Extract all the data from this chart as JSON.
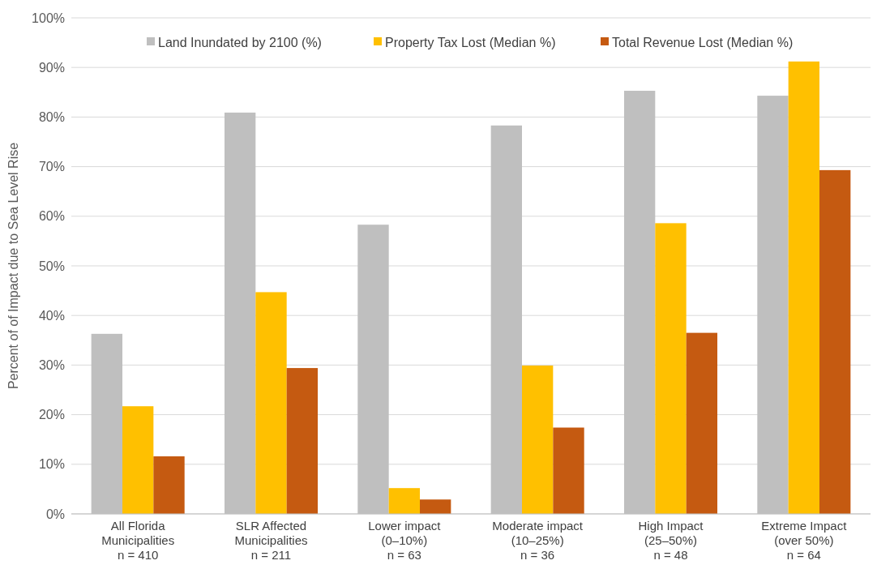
{
  "chart_data": {
    "type": "bar",
    "ylabel": "Percent of of Impact due to Sea Level Rise",
    "categories": [
      "All Florida\nMunicipalities\nn = 410",
      "SLR Affected\nMunicipalities\nn = 211",
      "Lower impact\n(0–10%)\nn = 63",
      "Moderate impact\n(10–25%)\nn = 36",
      "High Impact\n(25–50%)\nn = 48",
      "Extreme Impact\n(over 50%)\nn = 64"
    ],
    "series": [
      {
        "name": "Land Inundated by 2100 (%)",
        "color": "#bfbfbf",
        "values": [
          36.3,
          80.9,
          58.3,
          78.3,
          85.3,
          84.3
        ]
      },
      {
        "name": "Property Tax Lost (Median %)",
        "color": "#ffc000",
        "values": [
          21.7,
          44.7,
          5.2,
          29.9,
          58.6,
          91.2
        ]
      },
      {
        "name": "Total Revenue Lost (Median %)",
        "color": "#c55a11",
        "values": [
          11.6,
          29.4,
          2.9,
          17.4,
          36.5,
          69.3
        ]
      }
    ],
    "ylim": [
      0,
      100
    ],
    "yticks": [
      {
        "value": 0,
        "label": "0%"
      },
      {
        "value": 10,
        "label": "10%"
      },
      {
        "value": 20,
        "label": "20%"
      },
      {
        "value": 30,
        "label": "30%"
      },
      {
        "value": 40,
        "label": "40%"
      },
      {
        "value": 50,
        "label": "50%"
      },
      {
        "value": 60,
        "label": "60%"
      },
      {
        "value": 70,
        "label": "70%"
      },
      {
        "value": 80,
        "label": "80%"
      },
      {
        "value": 90,
        "label": "90%"
      },
      {
        "value": 100,
        "label": "100%"
      }
    ],
    "grid": "y",
    "legend": "top"
  }
}
